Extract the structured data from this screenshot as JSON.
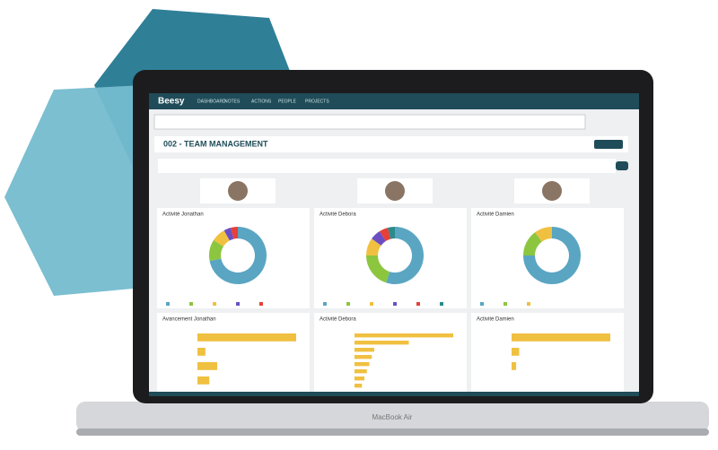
{
  "app": {
    "logo": "Beesy",
    "nav": [
      "DASHBOARD",
      "NOTES",
      "ACTIONS",
      "PEOPLE",
      "PROJECTS"
    ]
  },
  "dashboard": {
    "title": "002 - TEAM MANAGEMENT"
  },
  "donut_panels": [
    {
      "title": "Activité Jonathan",
      "segments": [
        {
          "color": "#5aa5c2",
          "value": 72
        },
        {
          "color": "#8cc63f",
          "value": 12
        },
        {
          "color": "#f0c040",
          "value": 8
        },
        {
          "color": "#6a4fc4",
          "value": 4
        },
        {
          "color": "#e5413a",
          "value": 4
        }
      ]
    },
    {
      "title": "Activité Debora",
      "segments": [
        {
          "color": "#5aa5c2",
          "value": 55
        },
        {
          "color": "#8cc63f",
          "value": 20
        },
        {
          "color": "#f0c040",
          "value": 10
        },
        {
          "color": "#6a4fc4",
          "value": 6
        },
        {
          "color": "#e5413a",
          "value": 5
        },
        {
          "color": "#2b8a8a",
          "value": 4
        }
      ]
    },
    {
      "title": "Activité Damien",
      "segments": [
        {
          "color": "#5aa5c2",
          "value": 75
        },
        {
          "color": "#8cc63f",
          "value": 15
        },
        {
          "color": "#f0c040",
          "value": 10
        }
      ]
    }
  ],
  "bar_panels": [
    {
      "title": "Avancement Jonathan",
      "bars": [
        {
          "color": "#f0c040",
          "value": 50
        },
        {
          "color": "#f0c040",
          "value": 4
        },
        {
          "color": "#f0c040",
          "value": 10
        },
        {
          "color": "#f0c040",
          "value": 6
        }
      ]
    },
    {
      "title": "Activité Debora",
      "bars": [
        {
          "color": "#f0c040",
          "value": 40
        },
        {
          "color": "#f0c040",
          "value": 22
        },
        {
          "color": "#f0c040",
          "value": 8
        },
        {
          "color": "#f0c040",
          "value": 7
        },
        {
          "color": "#f0c040",
          "value": 6
        },
        {
          "color": "#f0c040",
          "value": 5
        },
        {
          "color": "#f0c040",
          "value": 4
        },
        {
          "color": "#f0c040",
          "value": 3
        }
      ]
    },
    {
      "title": "Activité Damien",
      "bars": [
        {
          "color": "#f0c040",
          "value": 65
        },
        {
          "color": "#f0c040",
          "value": 5
        },
        {
          "color": "#f0c040",
          "value": 3
        }
      ]
    }
  ],
  "device": "MacBook Air"
}
